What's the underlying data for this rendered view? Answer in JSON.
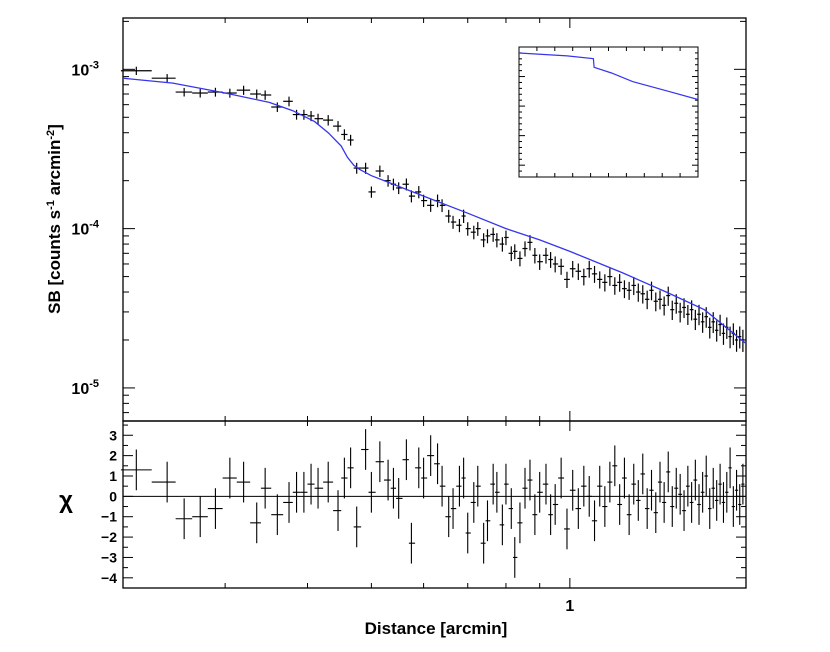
{
  "chart_data": [
    {
      "type": "scatter",
      "panel": "surface-brightness",
      "xscale": "log",
      "yscale": "log",
      "xlim": [
        0.21,
        1.85
      ],
      "ylim": [
        6.2e-06,
        0.0021
      ],
      "ylabel_main": "SB [counts s",
      "ylabel_sup1": "-1",
      "ylabel_mid": " arcmin",
      "ylabel_sup2": "-2",
      "ylabel_end": "]",
      "ytick_labels": [
        {
          "base": "10",
          "exp": "-3",
          "value": 0.001
        },
        {
          "base": "10",
          "exp": "-4",
          "value": 0.0001
        },
        {
          "base": "10",
          "exp": "-5",
          "value": 1e-05
        }
      ],
      "data_color": "#000000",
      "model_color": "#3535ee",
      "series": [
        {
          "kind": "data",
          "x": [
            0.22,
            0.245,
            0.26,
            0.275,
            0.29,
            0.305,
            0.32,
            0.335,
            0.345,
            0.36,
            0.375,
            0.385,
            0.395,
            0.405,
            0.415,
            0.43,
            0.445,
            0.455,
            0.465,
            0.475,
            0.49,
            0.5,
            0.515,
            0.53,
            0.54,
            0.55,
            0.565,
            0.575,
            0.59,
            0.6,
            0.615,
            0.63,
            0.64,
            0.655,
            0.665,
            0.68,
            0.69,
            0.7,
            0.715,
            0.725,
            0.74,
            0.75,
            0.765,
            0.775,
            0.79,
            0.8,
            0.815,
            0.825,
            0.84,
            0.855,
            0.87,
            0.885,
            0.9,
            0.92,
            0.935,
            0.95,
            0.97,
            0.99,
            1.01,
            1.03,
            1.05,
            1.07,
            1.09,
            1.11,
            1.13,
            1.15,
            1.17,
            1.19,
            1.21,
            1.23,
            1.25,
            1.27,
            1.29,
            1.31,
            1.33,
            1.35,
            1.37,
            1.39,
            1.41,
            1.43,
            1.45,
            1.47,
            1.49,
            1.51,
            1.53,
            1.55,
            1.57,
            1.59,
            1.61,
            1.63,
            1.65,
            1.67,
            1.69,
            1.71,
            1.73,
            1.75,
            1.77,
            1.79,
            1.81,
            1.83
          ],
          "y": [
            0.00098,
            0.00088,
            0.00072,
            0.00071,
            0.00072,
            0.00071,
            0.00074,
            0.0007,
            0.00069,
            0.00058,
            0.00063,
            0.00052,
            0.00052,
            0.00051,
            0.00049,
            0.00048,
            0.00044,
            0.00039,
            0.00036,
            0.00024,
            0.00024,
            0.00017,
            0.00023,
            0.0002,
            0.00019,
            0.00018,
            0.00019,
            0.00016,
            0.00017,
            0.00015,
            0.00014,
            0.00015,
            0.00014,
            0.00012,
            0.00011,
            0.000105,
            0.00012,
            0.0001,
            9.5e-05,
            0.0001,
            8.5e-05,
            9e-05,
            9.2e-05,
            8.5e-05,
            8e-05,
            8.8e-05,
            7e-05,
            7.2e-05,
            6.5e-05,
            7.5e-05,
            8.2e-05,
            6.8e-05,
            6.2e-05,
            6.8e-05,
            6.4e-05,
            6e-05,
            5.8e-05,
            4.8e-05,
            5.6e-05,
            5.4e-05,
            5e-05,
            5.6e-05,
            5.2e-05,
            4.8e-05,
            4.6e-05,
            5e-05,
            4.4e-05,
            4.6e-05,
            4.2e-05,
            4.1e-05,
            4.4e-05,
            4e-05,
            3.9e-05,
            3.6e-05,
            4.1e-05,
            3.5e-05,
            3.6e-05,
            3.3e-05,
            3.8e-05,
            3.1e-05,
            3.4e-05,
            3e-05,
            3.2e-05,
            2.9e-05,
            3.1e-05,
            2.7e-05,
            2.9e-05,
            2.6e-05,
            2.8e-05,
            2.4e-05,
            2.6e-05,
            2.3e-05,
            2.5e-05,
            2.2e-05,
            2.4e-05,
            2.1e-05,
            2.2e-05,
            2e-05,
            2.1e-05,
            2e-05
          ]
        },
        {
          "kind": "model",
          "x": [
            0.21,
            0.25,
            0.3,
            0.35,
            0.38,
            0.41,
            0.43,
            0.45,
            0.46,
            0.47,
            0.48,
            0.5,
            0.6,
            0.7,
            0.8,
            0.9,
            1.0,
            1.2,
            1.4,
            1.6,
            1.85
          ],
          "y": [
            0.00088,
            0.00082,
            0.00071,
            0.00062,
            0.00055,
            0.00047,
            0.0004,
            0.00033,
            0.00028,
            0.00025,
            0.000235,
            0.000215,
            0.00016,
            0.000125,
            0.0001,
            8.5e-05,
            7.2e-05,
            5.3e-05,
            4e-05,
            3.1e-05,
            1.9e-05
          ]
        }
      ]
    },
    {
      "type": "scatter",
      "panel": "residuals",
      "xscale": "log",
      "xlim": [
        0.21,
        1.85
      ],
      "ylim": [
        -4.5,
        3.7
      ],
      "xlabel": "Distance [arcmin]",
      "ylabel": "χ",
      "xtick_labels": [
        {
          "label": "1",
          "value": 1.0
        }
      ],
      "ytick_labels": [
        "3",
        "2",
        "1",
        "0",
        "−1",
        "−2",
        "−3",
        "−4"
      ],
      "ytick_values": [
        3,
        2,
        1,
        0,
        -1,
        -2,
        -3,
        -4
      ],
      "zero_line": 0,
      "series": [
        {
          "kind": "residual",
          "x": [
            0.22,
            0.245,
            0.26,
            0.275,
            0.29,
            0.305,
            0.32,
            0.335,
            0.345,
            0.36,
            0.375,
            0.385,
            0.395,
            0.405,
            0.415,
            0.43,
            0.445,
            0.455,
            0.465,
            0.475,
            0.49,
            0.5,
            0.515,
            0.53,
            0.54,
            0.55,
            0.565,
            0.575,
            0.59,
            0.6,
            0.615,
            0.63,
            0.64,
            0.655,
            0.665,
            0.68,
            0.69,
            0.7,
            0.715,
            0.725,
            0.74,
            0.75,
            0.765,
            0.775,
            0.79,
            0.8,
            0.815,
            0.825,
            0.84,
            0.855,
            0.87,
            0.885,
            0.9,
            0.92,
            0.935,
            0.95,
            0.97,
            0.99,
            1.01,
            1.03,
            1.05,
            1.07,
            1.09,
            1.11,
            1.13,
            1.15,
            1.17,
            1.19,
            1.21,
            1.23,
            1.25,
            1.27,
            1.29,
            1.31,
            1.33,
            1.35,
            1.37,
            1.39,
            1.41,
            1.43,
            1.45,
            1.47,
            1.49,
            1.51,
            1.53,
            1.55,
            1.57,
            1.59,
            1.61,
            1.63,
            1.65,
            1.67,
            1.69,
            1.71,
            1.73,
            1.75,
            1.77,
            1.79,
            1.81,
            1.83
          ],
          "y": [
            1.3,
            0.7,
            -1.1,
            -1.0,
            -0.6,
            0.9,
            0.7,
            -1.3,
            0.4,
            -0.9,
            -0.3,
            0.2,
            0.2,
            0.6,
            0.4,
            0.7,
            -0.7,
            0.9,
            1.4,
            -1.5,
            2.3,
            0.2,
            1.7,
            0.8,
            0.4,
            -0.1,
            1.8,
            -2.3,
            1.4,
            0.9,
            2.0,
            1.6,
            0.5,
            -1.0,
            -0.6,
            0.5,
            0.9,
            -1.8,
            -0.3,
            0.5,
            -2.3,
            -1.2,
            0.6,
            0.2,
            -1.4,
            0.6,
            -0.6,
            -3.0,
            -1.3,
            0.4,
            0.8,
            -0.9,
            0.2,
            0.6,
            -0.9,
            -0.4,
            0.9,
            -1.6,
            0.3,
            -0.6,
            0.5,
            0.0,
            -1.2,
            0.5,
            -0.5,
            0.7,
            1.5,
            -0.4,
            0.9,
            -0.9,
            0.6,
            -0.2,
            1.1,
            -0.6,
            0.3,
            -0.8,
            0.7,
            -0.3,
            1.2,
            -0.5,
            0.4,
            0.1,
            -0.7,
            0.5,
            -0.3,
            0.8,
            -0.4,
            0.2,
            1.0,
            -0.6,
            0.4,
            -0.2,
            0.6,
            -0.3,
            0.2,
            1.4,
            -0.5,
            0.3,
            -0.4,
            0.6
          ]
        }
      ]
    },
    {
      "type": "line",
      "panel": "inset",
      "xscale": "log",
      "yscale": "log",
      "model_color": "#3535ee",
      "series": [
        {
          "kind": "inset-profile",
          "x": [
            0.3,
            0.5,
            0.66,
            0.665,
            0.8,
            1.0,
            1.4,
            2.0
          ],
          "y": [
            1.0,
            0.96,
            0.92,
            0.8,
            0.72,
            0.6,
            0.48,
            0.35
          ]
        }
      ]
    }
  ]
}
